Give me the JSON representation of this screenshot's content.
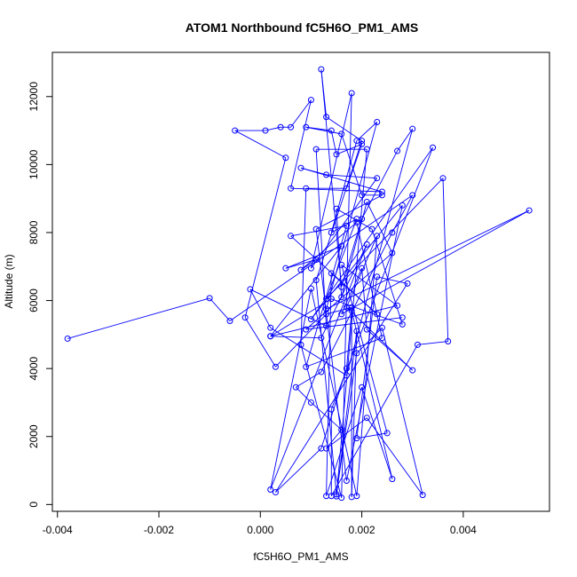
{
  "chart_data": {
    "type": "line",
    "title": "ATOM1 Northbound fC5H6O_PM1_AMS",
    "xlabel": "fC5H6O_PM1_AMS",
    "ylabel": "Altitude (m)",
    "xlim": [
      -0.0041,
      0.0057
    ],
    "ylim": [
      -200,
      13300
    ],
    "x_ticks": [
      -0.004,
      -0.002,
      0.0,
      0.002,
      0.004
    ],
    "x_tick_labels": [
      "-0.004",
      "-0.002",
      "0.000",
      "0.002",
      "0.004"
    ],
    "y_ticks": [
      0,
      2000,
      4000,
      6000,
      8000,
      10000,
      12000
    ],
    "y_tick_labels": [
      "0",
      "2000",
      "4000",
      "6000",
      "8000",
      "10000",
      "12000"
    ],
    "grid": false,
    "legend": "none",
    "series": [
      {
        "color": "#0000ff",
        "marker": "open-circle",
        "points": [
          [
            -0.0038,
            4880
          ],
          [
            -0.001,
            6070
          ],
          [
            -0.0006,
            5400
          ],
          [
            0.003,
            9100
          ],
          [
            0.0026,
            8000
          ],
          [
            0.0012,
            3900
          ],
          [
            0.0007,
            3450
          ],
          [
            0.001,
            3000
          ],
          [
            0.0016,
            2200
          ],
          [
            0.0013,
            1650
          ],
          [
            0.0021,
            2550
          ],
          [
            0.0032,
            280
          ],
          [
            0.0024,
            5200
          ],
          [
            0.0019,
            4450
          ],
          [
            0.0015,
            300
          ],
          [
            0.0011,
            6600
          ],
          [
            0.002,
            10700
          ],
          [
            0.0013,
            11400
          ],
          [
            0.0012,
            12800
          ],
          [
            0.0016,
            6400
          ],
          [
            0.002,
            8400
          ],
          [
            0.0027,
            10400
          ],
          [
            0.003,
            11050
          ],
          [
            0.0017,
            3800
          ],
          [
            0.0002,
            5200
          ],
          [
            -0.0002,
            6330
          ],
          [
            0.0013,
            5250
          ],
          [
            0.0011,
            10450
          ],
          [
            0.0021,
            10450
          ],
          [
            0.0015,
            240
          ],
          [
            0.0019,
            5100
          ],
          [
            0.0018,
            220
          ],
          [
            0.0018,
            5800
          ],
          [
            0.0013,
            5600
          ],
          [
            0.0003,
            4050
          ],
          [
            -0.0003,
            5500
          ],
          [
            0.0005,
            10200
          ],
          [
            -0.0005,
            11000
          ],
          [
            0.0001,
            11000
          ],
          [
            0.0004,
            11100
          ],
          [
            0.0006,
            11100
          ],
          [
            0.001,
            11900
          ],
          [
            0.0006,
            9300
          ],
          [
            0.0024,
            9200
          ],
          [
            0.0008,
            9900
          ],
          [
            0.0013,
            9700
          ],
          [
            0.0023,
            9600
          ],
          [
            0.001,
            6950
          ],
          [
            0.0018,
            12100
          ],
          [
            0.0016,
            200
          ],
          [
            0.0008,
            4700
          ],
          [
            0.0009,
            9300
          ],
          [
            0.0017,
            9300
          ],
          [
            0.002,
            10600
          ],
          [
            0.0015,
            10300
          ],
          [
            0.0014,
            11000
          ],
          [
            0.0009,
            11100
          ],
          [
            0.0016,
            10900
          ],
          [
            0.002,
            9100
          ],
          [
            0.0024,
            9100
          ],
          [
            0.0011,
            8100
          ],
          [
            0.0017,
            700
          ],
          [
            0.0028,
            8800
          ],
          [
            0.001,
            5450
          ],
          [
            0.0034,
            10500
          ],
          [
            0.0014,
            2800
          ],
          [
            0.0014,
            250
          ],
          [
            0.0031,
            4700
          ],
          [
            0.0037,
            4800
          ],
          [
            0.0036,
            9600
          ],
          [
            0.0013,
            6050
          ],
          [
            0.0019,
            8400
          ],
          [
            0.0014,
            8000
          ],
          [
            0.0019,
            10700
          ],
          [
            0.0023,
            11250
          ],
          [
            0.0013,
            5750
          ],
          [
            0.0053,
            8650
          ],
          [
            0.0016,
            5600
          ],
          [
            0.002,
            6950
          ],
          [
            0.0021,
            5150
          ],
          [
            0.003,
            3950
          ],
          [
            0.0017,
            5800
          ],
          [
            0.0023,
            7900
          ],
          [
            0.0019,
            250
          ],
          [
            0.001,
            6350
          ],
          [
            0.0002,
            440
          ],
          [
            0.0021,
            7650
          ],
          [
            0.0012,
            4900
          ],
          [
            0.0002,
            4950
          ],
          [
            0.0027,
            5850
          ],
          [
            0.0016,
            7050
          ],
          [
            0.0025,
            2100
          ],
          [
            0.0019,
            1950
          ],
          [
            0.0023,
            6700
          ],
          [
            0.0029,
            6500
          ],
          [
            0.0003,
            360
          ],
          [
            0.0012,
            1650
          ],
          [
            0.0017,
            4000
          ],
          [
            0.0018,
            5700
          ],
          [
            0.0026,
            750
          ],
          [
            0.002,
            3450
          ],
          [
            0.0013,
            250
          ],
          [
            0.0014,
            6800
          ],
          [
            0.0023,
            5600
          ],
          [
            0.0006,
            7900
          ],
          [
            0.0017,
            8200
          ],
          [
            0.0009,
            4050
          ],
          [
            0.0024,
            4900
          ],
          [
            0.0019,
            8300
          ],
          [
            0.0008,
            6900
          ],
          [
            0.0011,
            7200
          ],
          [
            0.0005,
            6950
          ],
          [
            0.0016,
            7600
          ],
          [
            0.0002,
            4950
          ],
          [
            0.0014,
            6050
          ],
          [
            0.0028,
            5300
          ],
          [
            0.0022,
            8100
          ],
          [
            0.0015,
            8700
          ],
          [
            0.0016,
            6100
          ],
          [
            0.0021,
            8900
          ],
          [
            0.0026,
            7400
          ],
          [
            0.0009,
            5150
          ],
          [
            0.0028,
            5500
          ]
        ]
      }
    ]
  }
}
